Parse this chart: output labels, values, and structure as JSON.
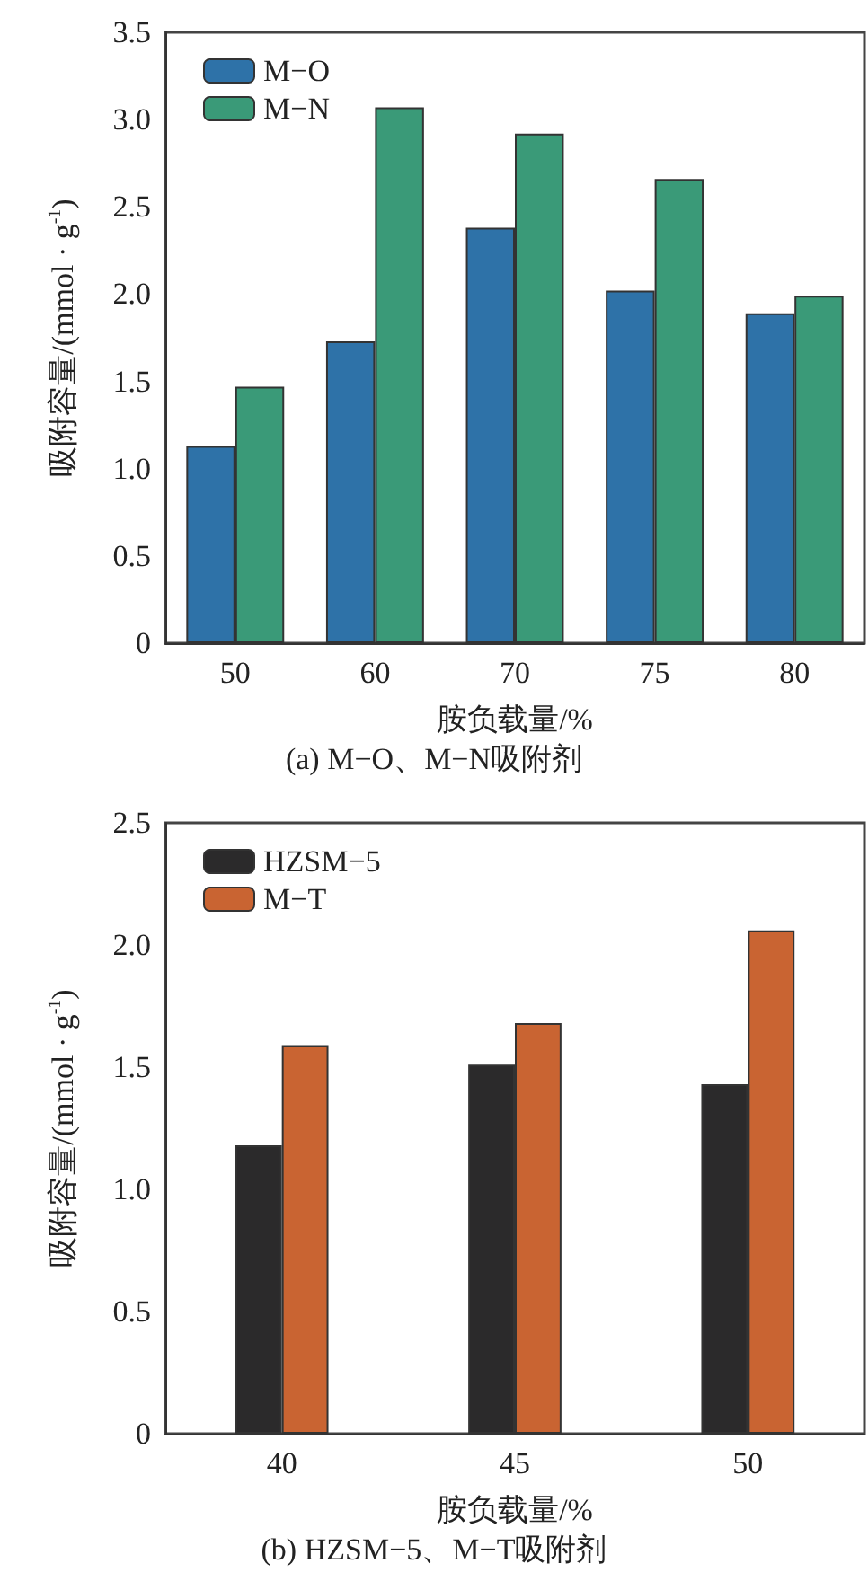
{
  "chart_data": [
    {
      "type": "bar",
      "title": "(a) M−O、M−N吸附剂",
      "xlabel": "胺负载量/%",
      "ylabel": "吸附容量/(mmol · g$^{-1}$)",
      "categories": [
        "50",
        "60",
        "70",
        "75",
        "80"
      ],
      "series": [
        {
          "name": "M−O",
          "color": "#2e72a8",
          "values": [
            1.13,
            1.73,
            2.38,
            2.02,
            1.89
          ]
        },
        {
          "name": "M−N",
          "color": "#3a9a78",
          "values": [
            1.47,
            3.07,
            2.92,
            2.66,
            1.99
          ]
        }
      ],
      "ylim": [
        0,
        3.5
      ],
      "yticks": [
        {
          "value": 0,
          "label": "0"
        },
        0.5,
        {
          "value": 1,
          "label": "1.0"
        },
        1.5,
        {
          "value": 2,
          "label": "2.0"
        },
        2.5,
        {
          "value": 3,
          "label": "3.0"
        },
        3.5
      ],
      "grid": false,
      "legend": "top left"
    },
    {
      "type": "bar",
      "title": "(b) HZSM−5、M−T吸附剂",
      "xlabel": "胺负载量/%",
      "ylabel": "吸附容量/(mmol · g$^{-1}$)",
      "categories": [
        "40",
        "45",
        "50"
      ],
      "series": [
        {
          "name": "HZSM−5",
          "color": "#2b2a2b",
          "values": [
            1.18,
            1.51,
            1.43
          ]
        },
        {
          "name": "M−T",
          "color": "#c96432",
          "values": [
            1.59,
            1.68,
            2.06
          ]
        }
      ],
      "ylim": [
        0,
        2.5
      ],
      "yticks": [
        {
          "value": 0,
          "label": "0"
        },
        0.5,
        {
          "value": 1,
          "label": "1.0"
        },
        1.5,
        {
          "value": 2,
          "label": "2.0"
        },
        2.5
      ],
      "grid": false,
      "legend": "top left"
    }
  ]
}
